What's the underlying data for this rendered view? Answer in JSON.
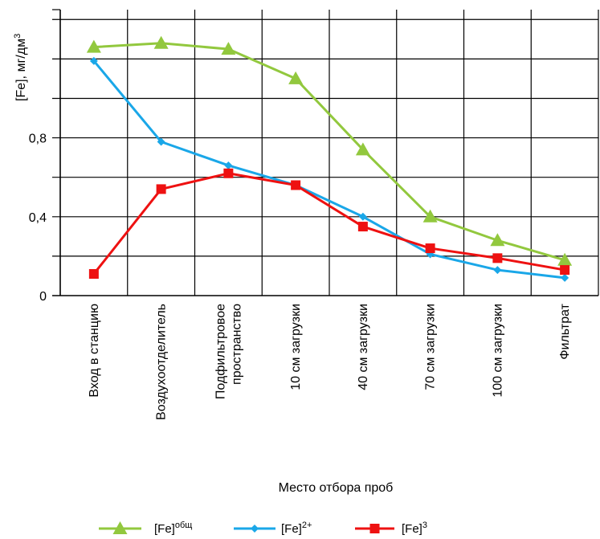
{
  "chart_data": {
    "type": "line",
    "ylabel_main": "[Fe], мг/дм",
    "ylabel_sup": "3",
    "xlabel": "Место отбора проб",
    "ylim": [
      0,
      1.45
    ],
    "yticks": [
      {
        "value": 0,
        "label": "0"
      },
      {
        "value": 0.4,
        "label": "0,4"
      },
      {
        "value": 0.8,
        "label": "0,8"
      }
    ],
    "grid": true,
    "categories": [
      [
        "Вход в станцию"
      ],
      [
        "Воздухоотделитель"
      ],
      [
        "Подфильтровое",
        "пространство"
      ],
      [
        "10 см загрузки"
      ],
      [
        "40 см загрузки"
      ],
      [
        "70 см загрузки"
      ],
      [
        "100 см загрузки"
      ],
      [
        "Фильтрат"
      ]
    ],
    "series": [
      {
        "name_main": "[Fe]",
        "name_sup": "общ",
        "color": "#92c83e",
        "marker": "triangle",
        "values": [
          1.26,
          1.28,
          1.25,
          1.1,
          0.74,
          0.4,
          0.28,
          0.18
        ]
      },
      {
        "name_main": "[Fe]",
        "name_sup": "2+",
        "color": "#1aa7e8",
        "marker": "diamond",
        "values": [
          1.19,
          0.78,
          0.66,
          0.56,
          0.4,
          0.21,
          0.13,
          0.09
        ]
      },
      {
        "name_main": "[Fe]",
        "name_sup": "3",
        "color": "#ee1111",
        "marker": "square",
        "values": [
          0.11,
          0.54,
          0.62,
          0.56,
          0.35,
          0.24,
          0.19,
          0.13
        ]
      }
    ],
    "legend_position": "bottom"
  }
}
